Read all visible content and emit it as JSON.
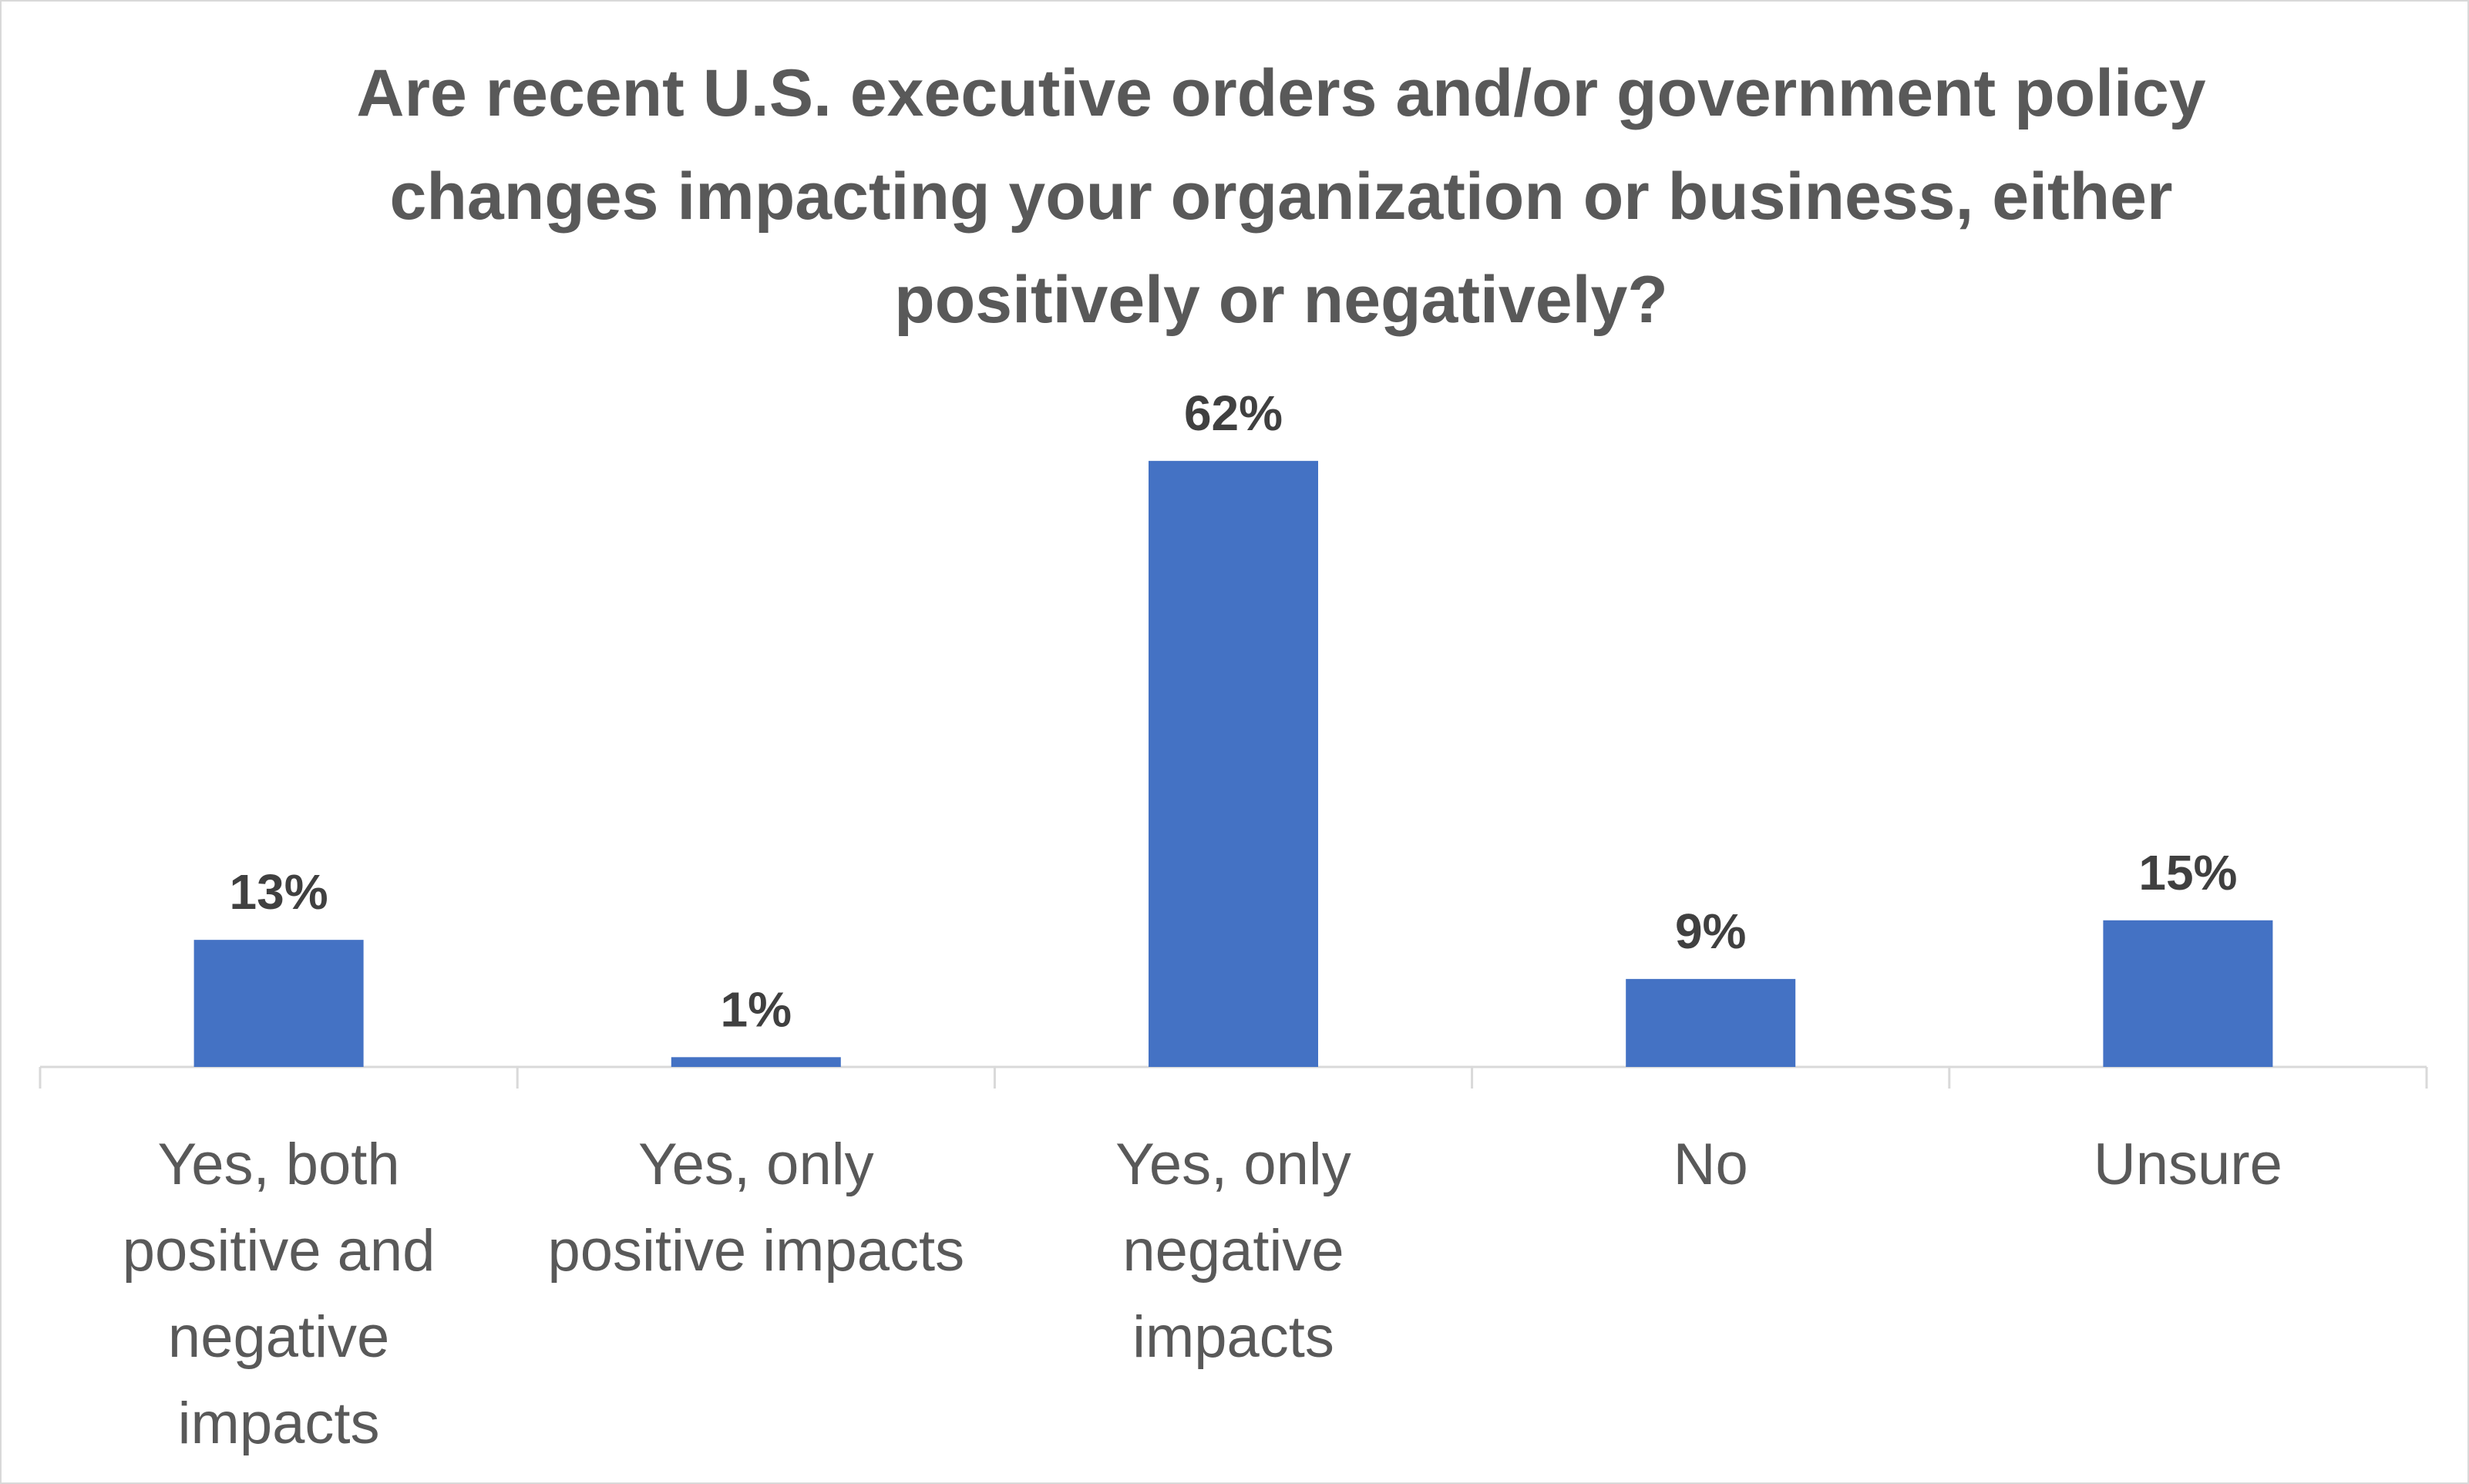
{
  "chart_data": {
    "type": "bar",
    "title": "Are recent U.S. executive orders and/or government policy changes impacting your organization or business, either positively or negatively?",
    "categories": [
      "Yes, both positive and negative impacts",
      "Yes, only positive impacts",
      "Yes, only negative impacts",
      "No",
      "Unsure"
    ],
    "values": [
      13,
      1,
      62,
      9,
      15
    ],
    "data_labels": [
      "13%",
      "1%",
      "62%",
      "9%",
      "15%"
    ],
    "unit": "%",
    "ylim": [
      0,
      70
    ],
    "xlabel": "",
    "ylabel": "",
    "grid": false,
    "legend": "none",
    "bar_color": "#4472C4"
  }
}
